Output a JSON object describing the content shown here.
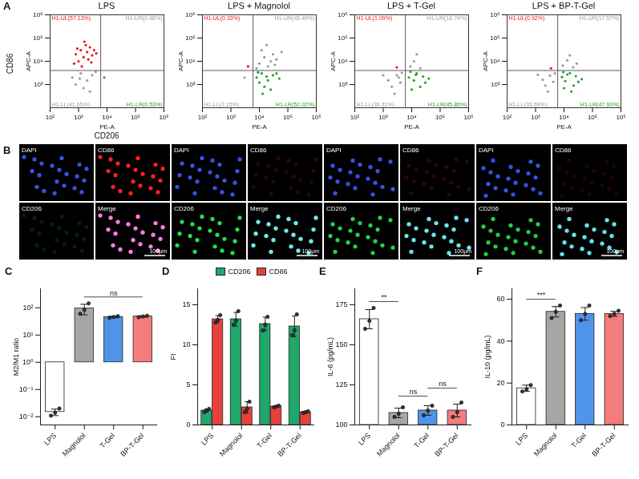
{
  "chart_data": [
    {
      "type": "scatter",
      "panel_label": "A",
      "title": "LPS",
      "outer_ylabel": "CD86",
      "outer_xlabel": "CD206",
      "xlabel": "PE-A",
      "ylabel": "APC-A",
      "log": true,
      "xlim": [
        100,
        1000000
      ],
      "ylim": [
        100,
        1000000
      ],
      "xticks": [
        {
          "value": 100,
          "label": "10²"
        },
        {
          "value": 1000,
          "label": "10³"
        },
        {
          "value": 10000,
          "label": "10⁴"
        },
        {
          "value": 100000,
          "label": "10⁵"
        },
        {
          "value": 1000000,
          "label": "10⁶"
        }
      ],
      "yticks": [
        {
          "value": 1000,
          "label": "10³"
        },
        {
          "value": 10000,
          "label": "10⁴"
        },
        {
          "value": 100000,
          "label": "10⁵"
        },
        {
          "value": 1000000,
          "label": "10⁶"
        }
      ],
      "gates": {
        "x": 6000,
        "y": 4000
      },
      "quadrant_labels": {
        "UL": "H1-UL(57.13%)",
        "UR": "H1-UR(0.68%)",
        "LL": "H1-LL(41.65%)",
        "LR": "H1-LR(0.53%)"
      },
      "quadrant_colors": {
        "UL": "#e41a1c",
        "UR": "#9a9a9a",
        "LL": "#9a9a9a",
        "LR": "#2ca02c"
      },
      "points": {
        "x": [
          800,
          1200,
          1500,
          2000,
          2500,
          1000,
          3000,
          700,
          1800,
          2200,
          3500,
          1300,
          900,
          2800,
          1600,
          4200,
          600,
          1200,
          2000,
          3000,
          800,
          1500,
          4000,
          2500,
          1100,
          8000
        ],
        "y": [
          20000,
          30000,
          15000,
          25000,
          40000,
          10000,
          18000,
          8000,
          50000,
          12000,
          30000,
          6000,
          35000,
          9000,
          70000,
          22000,
          2000,
          3000,
          1500,
          2500,
          1000,
          700,
          3500,
          500,
          1800,
          2000
        ]
      }
    },
    {
      "type": "scatter",
      "title": "LPS + Magnolol",
      "xlabel": "PE-A",
      "ylabel": "APC-A",
      "log": true,
      "xlim": [
        100,
        1000000
      ],
      "ylim": [
        100,
        1000000
      ],
      "xticks": [
        {
          "value": 100,
          "label": "10²"
        },
        {
          "value": 1000,
          "label": "10³"
        },
        {
          "value": 10000,
          "label": "10⁴"
        },
        {
          "value": 100000,
          "label": "10⁵"
        },
        {
          "value": 1000000,
          "label": "10⁶"
        }
      ],
      "yticks": [
        {
          "value": 1000,
          "label": "10³"
        },
        {
          "value": 10000,
          "label": "10⁴"
        },
        {
          "value": 100000,
          "label": "10⁵"
        },
        {
          "value": 1000000,
          "label": "10⁶"
        }
      ],
      "gates": {
        "x": 6000,
        "y": 4000
      },
      "quadrant_labels": {
        "UL": "H1-UL(0.33%)",
        "UR": "H1-UR(45.49%)",
        "LL": "H1-LL(2.15%)",
        "LR": "H1-LR(52.02%)"
      },
      "quadrant_colors": {
        "UL": "#e41a1c",
        "UR": "#9a9a9a",
        "LL": "#9a9a9a",
        "LR": "#2ca02c"
      },
      "points": {
        "x": [
          8000,
          12000,
          20000,
          30000,
          15000,
          10000,
          40000,
          25000,
          9000,
          18000,
          50000,
          13000,
          10000,
          15000,
          20000,
          30000,
          12000,
          25000,
          40000,
          8000,
          18000,
          35000,
          60000,
          4000,
          3000
        ],
        "y": [
          2000,
          3000,
          1500,
          2500,
          800,
          1200,
          3000,
          600,
          3300,
          2200,
          1800,
          400,
          8000,
          15000,
          6000,
          20000,
          30000,
          10000,
          12000,
          5000,
          50000,
          7000,
          25000,
          6000,
          2000
        ]
      }
    },
    {
      "type": "scatter",
      "title": "LPS + T-Gel",
      "xlabel": "PE-A",
      "ylabel": "APC-A",
      "log": true,
      "xlim": [
        100,
        1000000
      ],
      "ylim": [
        100,
        1000000
      ],
      "xticks": [
        {
          "value": 100,
          "label": "10²"
        },
        {
          "value": 1000,
          "label": "10³"
        },
        {
          "value": 10000,
          "label": "10⁴"
        },
        {
          "value": 100000,
          "label": "10⁵"
        },
        {
          "value": 1000000,
          "label": "10⁶"
        }
      ],
      "yticks": [
        {
          "value": 1000,
          "label": "10³"
        },
        {
          "value": 10000,
          "label": "10⁴"
        },
        {
          "value": 100000,
          "label": "10⁵"
        },
        {
          "value": 1000000,
          "label": "10⁶"
        }
      ],
      "gates": {
        "x": 6000,
        "y": 4000
      },
      "quadrant_labels": {
        "UL": "H1-UL(1.09%)",
        "UR": "H1-UR(16.74%)",
        "LL": "H1-LL(36.31%)",
        "LR": "H1-LR(45.86%)"
      },
      "quadrant_colors": {
        "UL": "#e41a1c",
        "UR": "#9a9a9a",
        "LL": "#9a9a9a",
        "LR": "#2ca02c"
      },
      "points": {
        "x": [
          1500,
          3000,
          2000,
          4000,
          1000,
          4500,
          2500,
          3500,
          8000,
          12000,
          15000,
          20000,
          10000,
          25000,
          9000,
          30000,
          14000,
          40000,
          9000,
          12000,
          20000,
          15000,
          3000
        ],
        "y": [
          1500,
          2500,
          800,
          1200,
          2500,
          3200,
          400,
          2000,
          2000,
          1500,
          3000,
          800,
          600,
          2200,
          3500,
          1200,
          2600,
          1800,
          6000,
          10000,
          5000,
          20000,
          5500
        ]
      }
    },
    {
      "type": "scatter",
      "title": "LPS + BP-T-Gel",
      "xlabel": "PE-A",
      "ylabel": "APC-A",
      "log": true,
      "xlim": [
        100,
        1000000
      ],
      "ylim": [
        100,
        1000000
      ],
      "xticks": [
        {
          "value": 100,
          "label": "10²"
        },
        {
          "value": 1000,
          "label": "10³"
        },
        {
          "value": 10000,
          "label": "10⁴"
        },
        {
          "value": 100000,
          "label": "10⁵"
        },
        {
          "value": 1000000,
          "label": "10⁶"
        }
      ],
      "yticks": [
        {
          "value": 1000,
          "label": "10³"
        },
        {
          "value": 10000,
          "label": "10⁴"
        },
        {
          "value": 100000,
          "label": "10⁵"
        },
        {
          "value": 1000000,
          "label": "10⁶"
        }
      ],
      "gates": {
        "x": 6000,
        "y": 4000
      },
      "quadrant_labels": {
        "UL": "H1-UL(0.92%)",
        "UR": "H1-UR(17.57%)",
        "LL": "H1-LL(33.59%)",
        "LR": "H1-LR(47.93%)"
      },
      "quadrant_colors": {
        "UL": "#e41a1c",
        "UR": "#9a9a9a",
        "LL": "#9a9a9a",
        "LR": "#2ca02c"
      },
      "points": {
        "x": [
          1800,
          3200,
          2200,
          4200,
          1200,
          4800,
          2700,
          8500,
          11000,
          16000,
          22000,
          10000,
          26000,
          9500,
          32000,
          13000,
          42000,
          18000,
          9000,
          13000,
          21000,
          16000,
          28000,
          3500
        ],
        "y": [
          1600,
          2400,
          900,
          1300,
          2600,
          3000,
          500,
          2100,
          1400,
          3100,
          900,
          700,
          2300,
          3400,
          1300,
          2700,
          1700,
          500,
          6500,
          11000,
          5500,
          18000,
          8000,
          5000
        ]
      }
    },
    {
      "type": "bar",
      "panel_label": "C",
      "ylabel": "M2/M1 ratio",
      "log": "y",
      "categories": [
        "LPS",
        "Magnolol",
        "T-Gel",
        "BP-T-Gel"
      ],
      "values": [
        0.015,
        95,
        46,
        48
      ],
      "errors": [
        0.004,
        40,
        3,
        3
      ],
      "points": [
        [
          0.011,
          0.014,
          0.02
        ],
        [
          60,
          85,
          145
        ],
        [
          43,
          46,
          49
        ],
        [
          45,
          48,
          51
        ]
      ],
      "colors": [
        "#ffffff",
        "#a6a6a6",
        "#4f94e8",
        "#f47c7c"
      ],
      "ylim": [
        0.005,
        500
      ],
      "yticks": [
        {
          "value": 0.01,
          "label": "10⁻²"
        },
        {
          "value": 0.1,
          "label": "10⁻¹"
        },
        {
          "value": 1,
          "label": "10⁰"
        },
        {
          "value": 10,
          "label": "10¹"
        },
        {
          "value": 100,
          "label": "10²"
        }
      ],
      "annotations": [
        {
          "from": "Magnolol",
          "to": "BP-T-Gel",
          "y": 250,
          "label": "ns"
        }
      ]
    },
    {
      "type": "bar",
      "panel_label": "D",
      "ylabel": "FI",
      "legend": "top",
      "categories": [
        "LPS",
        "Magnolol",
        "T-Gel",
        "BP-T-Gel"
      ],
      "series": [
        {
          "name": "CD206",
          "color": "#21a66b",
          "values": [
            1.8,
            13.2,
            12.6,
            12.3
          ],
          "errors": [
            0.2,
            0.85,
            0.85,
            1.3
          ],
          "points": [
            [
              1.6,
              1.8,
              2.0
            ],
            [
              12.5,
              13.0,
              14.2
            ],
            [
              11.8,
              12.5,
              13.5
            ],
            [
              11.2,
              11.8,
              13.8
            ]
          ]
        },
        {
          "name": "CD86",
          "color": "#e8413c",
          "values": [
            13.2,
            2.2,
            2.3,
            1.6
          ],
          "errors": [
            0.45,
            0.7,
            0.1,
            0.1
          ],
          "points": [
            [
              12.8,
              13.1,
              13.7
            ],
            [
              1.6,
              2.0,
              2.9
            ],
            [
              2.2,
              2.3,
              2.4
            ],
            [
              1.5,
              1.6,
              1.7
            ]
          ]
        }
      ],
      "ylim": [
        0,
        17
      ],
      "yticks": [
        0,
        5,
        10,
        15
      ]
    },
    {
      "type": "bar",
      "panel_label": "E",
      "ylabel": "IL-6 (pg/mL)",
      "categories": [
        "LPS",
        "Magnolol",
        "T-Gel",
        "BP-T-Gel"
      ],
      "values": [
        166,
        107.5,
        109,
        109
      ],
      "errors": [
        6,
        3,
        3,
        4
      ],
      "points": [
        [
          160,
          165,
          173
        ],
        [
          105,
          107,
          111
        ],
        [
          106,
          109,
          112
        ],
        [
          105,
          108,
          114
        ]
      ],
      "colors": [
        "#ffffff",
        "#a6a6a6",
        "#4f94e8",
        "#f47c7c"
      ],
      "ylim": [
        100,
        185
      ],
      "yticks": [
        100,
        125,
        150,
        175
      ],
      "annotations": [
        {
          "from": "LPS",
          "to": "Magnolol",
          "y": 177,
          "label": "**"
        },
        {
          "from": "Magnolol",
          "to": "T-Gel",
          "y": 118,
          "label": "ns"
        },
        {
          "from": "T-Gel",
          "to": "BP-T-Gel",
          "y": 123,
          "label": "ns"
        }
      ]
    },
    {
      "type": "bar",
      "panel_label": "F",
      "ylabel": "IL-10 (pg/mL)",
      "categories": [
        "LPS",
        "Magnolol",
        "T-Gel",
        "BP-T-Gel"
      ],
      "values": [
        17.5,
        54,
        53,
        53
      ],
      "errors": [
        1.5,
        2.5,
        3,
        1.2
      ],
      "points": [
        [
          16,
          17,
          19
        ],
        [
          51,
          54,
          57
        ],
        [
          50,
          53,
          57
        ],
        [
          52,
          53,
          54.5
        ]
      ],
      "colors": [
        "#ffffff",
        "#a6a6a6",
        "#4f94e8",
        "#f47c7c"
      ],
      "ylim": [
        0,
        65
      ],
      "yticks": [
        0,
        20,
        40,
        60
      ],
      "annotations": [
        {
          "from": "LPS",
          "to": "Magnolol",
          "y": 60,
          "label": "***"
        }
      ]
    }
  ],
  "images": {
    "panel_label": "B",
    "channels": [
      "DAPI",
      "CD86",
      "CD206",
      "Merge"
    ],
    "scale_bar": "100μm"
  }
}
